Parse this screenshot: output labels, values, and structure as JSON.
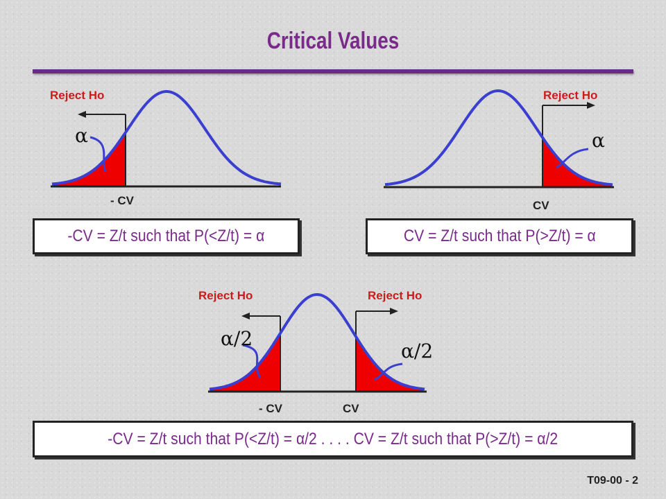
{
  "title": "Critical Values",
  "panels": {
    "left_tail": {
      "reject_label": "Reject Ho",
      "cv_label": "- CV",
      "alpha_label": "α",
      "formula": "-CV = Z/t such that P(<Z/t) = α"
    },
    "right_tail": {
      "reject_label": "Reject Ho",
      "cv_label": "CV",
      "alpha_label": "α",
      "formula": "CV = Z/t such that P(>Z/t) = α"
    },
    "two_tail": {
      "reject_left_label": "Reject Ho",
      "reject_right_label": "Reject Ho",
      "cv_left_label": "- CV",
      "cv_right_label": "CV",
      "alpha_left_label": "α/2",
      "alpha_right_label": "α/2",
      "formula": "-CV = Z/t such that P(<Z/t) = α/2 . . . . CV = Z/t such that P(>Z/t) = α/2"
    }
  },
  "footer": "T09-00 - 2",
  "colors": {
    "title": "#7a2a8a",
    "curve": "#3b3fd0",
    "tail": "#ee0000",
    "reject_text": "#cc1b1b"
  }
}
